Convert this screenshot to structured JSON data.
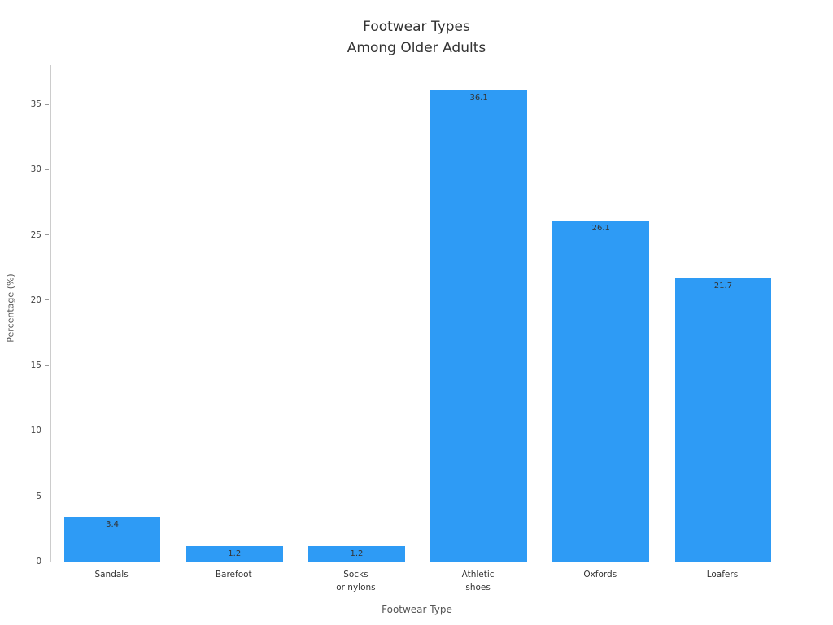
{
  "title": {
    "line1": "Footwear Types",
    "line2": "Among Older Adults"
  },
  "chart_data": {
    "type": "bar",
    "title": "Footwear Types Among Older Adults",
    "categories": [
      "Sandals",
      "Barefoot",
      "Socks\nor nylons",
      "Athletic\nshoes",
      "Oxfords",
      "Loafers"
    ],
    "values": [
      3.4,
      1.2,
      1.2,
      36.1,
      26.1,
      21.7
    ],
    "value_labels": [
      "3.4",
      "1.2",
      "1.2",
      "36.1",
      "26.1",
      "21.7"
    ],
    "xlabel": "Footwear Type",
    "ylabel": "Percentage (%)",
    "ylim": [
      0,
      38
    ],
    "yticks": [
      0,
      5,
      10,
      15,
      20,
      25,
      30,
      35
    ],
    "grid": false,
    "legend": null,
    "bar_color": "#2E9BF5",
    "bar_label_color": "#333333",
    "axis_color": "#cccccc",
    "text_color": "#333333"
  }
}
